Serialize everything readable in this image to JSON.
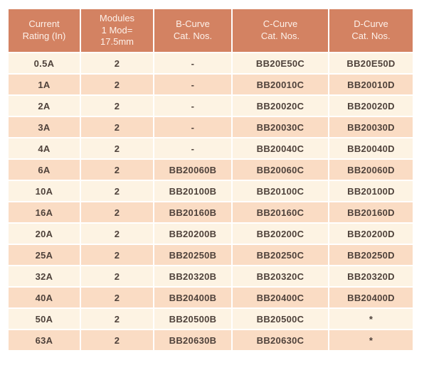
{
  "colors": {
    "header-bg": "#d38262",
    "header-text": "#fdf1ea",
    "row-odd-bg": "#fdf3e3",
    "row-even-bg": "#fadcc4",
    "cell-text": "#4f423b",
    "page-bg": "#ffffff"
  },
  "table": {
    "columns": [
      {
        "label": "Current\nRating (In)"
      },
      {
        "label": "Modules\n1 Mod=\n17.5mm"
      },
      {
        "label": "B-Curve\nCat. Nos."
      },
      {
        "label": "C-Curve\nCat. Nos."
      },
      {
        "label": "D-Curve\nCat. Nos."
      }
    ],
    "rows": [
      {
        "cells": [
          "0.5A",
          "2",
          "-",
          "BB20E50C",
          "BB20E50D"
        ]
      },
      {
        "cells": [
          "1A",
          "2",
          "-",
          "BB20010C",
          "BB20010D"
        ]
      },
      {
        "cells": [
          "2A",
          "2",
          "-",
          "BB20020C",
          "BB20020D"
        ]
      },
      {
        "cells": [
          "3A",
          "2",
          "-",
          "BB20030C",
          "BB20030D"
        ]
      },
      {
        "cells": [
          "4A",
          "2",
          "-",
          "BB20040C",
          "BB20040D"
        ]
      },
      {
        "cells": [
          "6A",
          "2",
          "BB20060B",
          "BB20060C",
          "BB20060D"
        ]
      },
      {
        "cells": [
          "10A",
          "2",
          "BB20100B",
          "BB20100C",
          "BB20100D"
        ]
      },
      {
        "cells": [
          "16A",
          "2",
          "BB20160B",
          "BB20160C",
          "BB20160D"
        ]
      },
      {
        "cells": [
          "20A",
          "2",
          "BB20200B",
          "BB20200C",
          "BB20200D"
        ]
      },
      {
        "cells": [
          "25A",
          "2",
          "BB20250B",
          "BB20250C",
          "BB20250D"
        ]
      },
      {
        "cells": [
          "32A",
          "2",
          "BB20320B",
          "BB20320C",
          "BB20320D"
        ]
      },
      {
        "cells": [
          "40A",
          "2",
          "BB20400B",
          "BB20400C",
          "BB20400D"
        ]
      },
      {
        "cells": [
          "50A",
          "2",
          "BB20500B",
          "BB20500C",
          "*"
        ]
      },
      {
        "cells": [
          "63A",
          "2",
          "BB20630B",
          "BB20630C",
          "*"
        ]
      }
    ]
  }
}
